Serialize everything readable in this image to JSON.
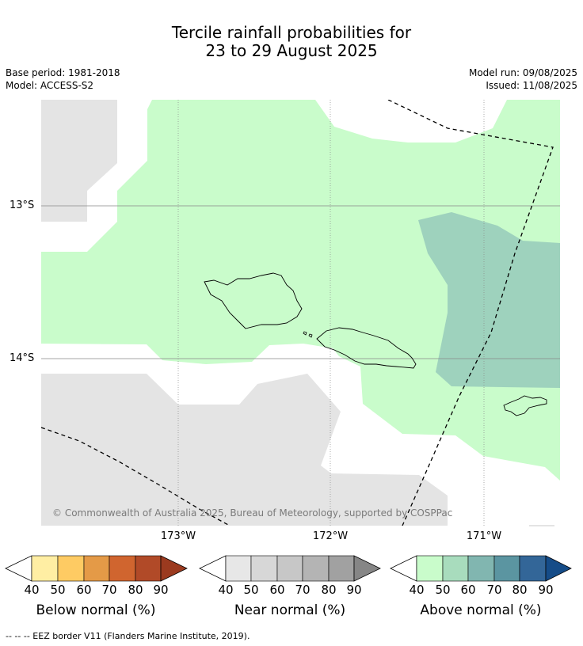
{
  "title": {
    "line1": "Tercile rainfall probabilities for",
    "line2": "23 to 29 August 2025"
  },
  "meta": {
    "base_period": "Base period: 1981-2018",
    "model": "Model: ACCESS-S2",
    "model_run": "Model run: 09/08/2025",
    "issued": "Issued: 11/08/2025"
  },
  "map": {
    "lat_labels": [
      "13°S",
      "14°S"
    ],
    "lon_labels": [
      "173°W",
      "172°W",
      "171°W"
    ],
    "copyright": "© Commonwealth of Australia 2025, Bureau of Meteorology, supported by COSPPac",
    "colors": {
      "below_gray": "#e4e4e4",
      "above_40_50": "#c9fccb",
      "above_60_70": "#9ed2bd",
      "coast": "#000000",
      "eez": "#000000"
    }
  },
  "colorbars": [
    {
      "label": "Below normal (%)",
      "ticks": [
        "40",
        "50",
        "60",
        "70",
        "80",
        "90"
      ],
      "colors": [
        "#ffeea3",
        "#fecb63",
        "#e49a47",
        "#d0652f",
        "#b14a28",
        "#9b3a1f"
      ]
    },
    {
      "label": "Near normal (%)",
      "ticks": [
        "40",
        "50",
        "60",
        "70",
        "80",
        "90"
      ],
      "colors": [
        "#e7e7e7",
        "#d7d7d7",
        "#c7c7c7",
        "#b4b4b4",
        "#a1a1a1",
        "#868686"
      ]
    },
    {
      "label": "Above normal (%)",
      "ticks": [
        "40",
        "50",
        "60",
        "70",
        "80",
        "90"
      ],
      "colors": [
        "#c9fccb",
        "#a8dcbd",
        "#81b6b0",
        "#5b95a1",
        "#336698",
        "#154c88"
      ]
    }
  ],
  "footnote": "--  --  -- EEZ border V11 (Flanders Marine Institute, 2019)."
}
